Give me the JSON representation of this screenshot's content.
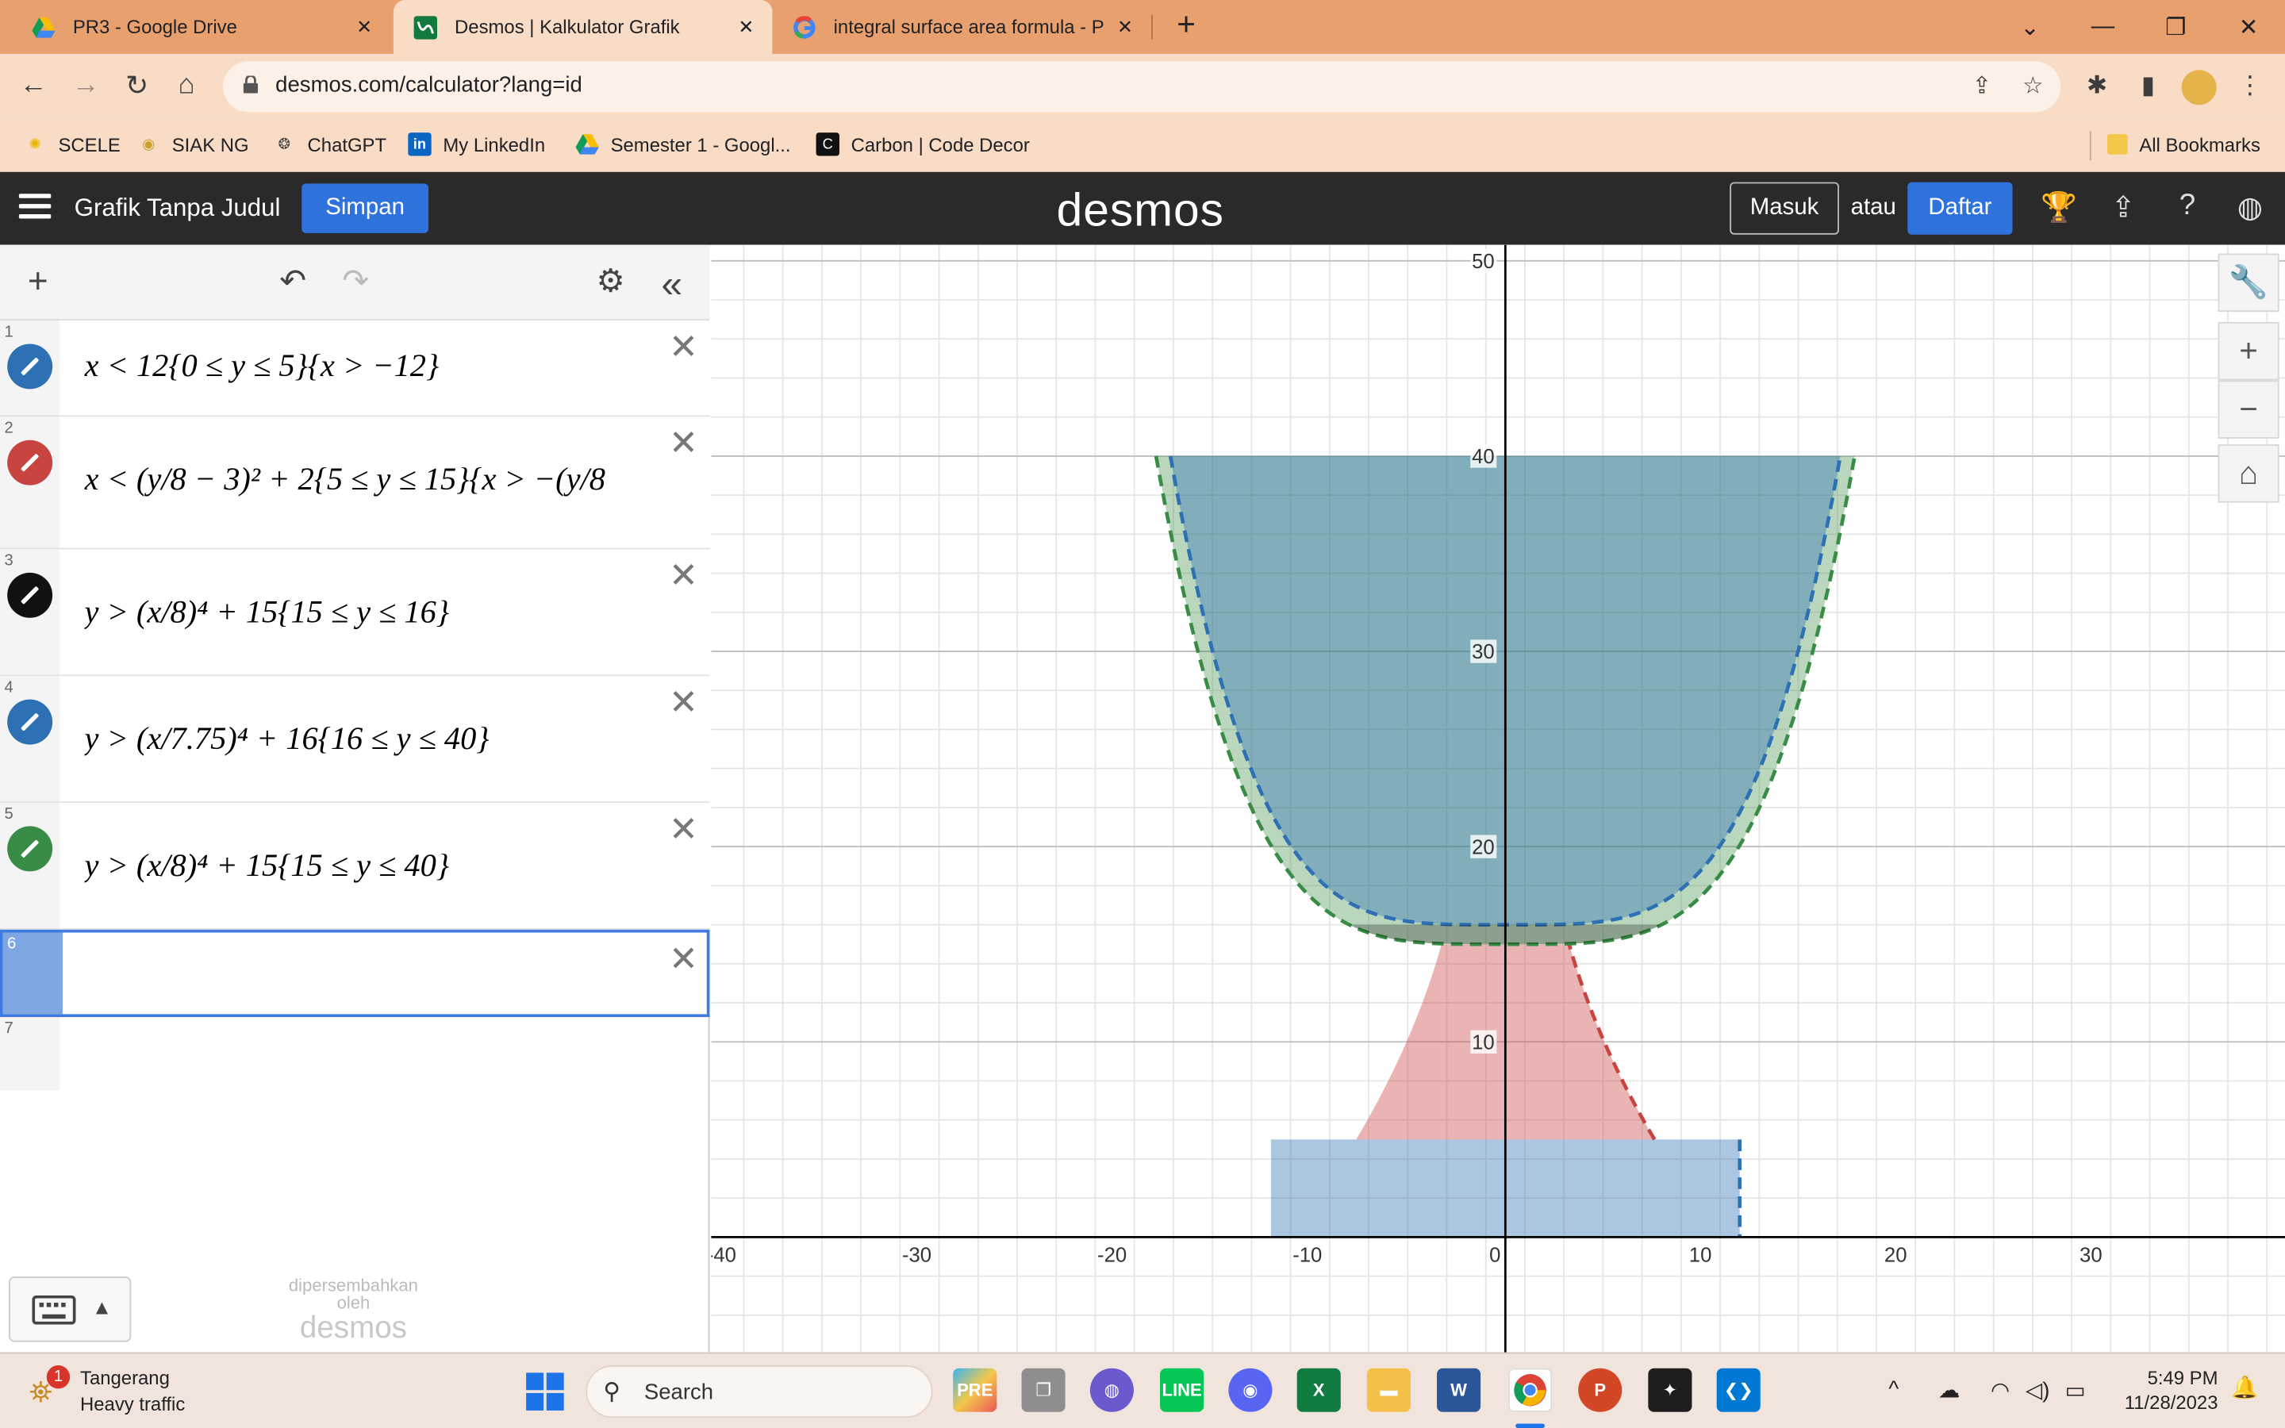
{
  "browser": {
    "tabs": [
      {
        "title": "PR3 - Google Drive",
        "icon": "google-drive-icon",
        "active": false
      },
      {
        "title": "Desmos | Kalkulator Grafik",
        "icon": "desmos-icon",
        "active": true
      },
      {
        "title": "integral surface area formula - P",
        "icon": "google-icon",
        "active": false
      }
    ],
    "url": "desmos.com/calculator?lang=id",
    "bookmarks": [
      {
        "label": "SCELE",
        "icon": "scele-icon"
      },
      {
        "label": "SIAK NG",
        "icon": "siak-icon"
      },
      {
        "label": "ChatGPT",
        "icon": "chatgpt-icon"
      },
      {
        "label": "My LinkedIn",
        "icon": "linkedin-icon"
      },
      {
        "label": "Semester 1 - Googl...",
        "icon": "google-drive-icon"
      },
      {
        "label": "Carbon | Code Decor",
        "icon": "carbon-icon"
      }
    ],
    "all_bookmarks": "All Bookmarks"
  },
  "desmos": {
    "graph_title": "Grafik Tanpa Judul",
    "save_label": "Simpan",
    "logo": "desmos",
    "login_label": "Masuk",
    "or_label": "atau",
    "signup_label": "Daftar",
    "powered_by": "dipersembahkan",
    "powered_by_2": "oleh",
    "powered_logo": "desmos"
  },
  "expressions": [
    {
      "num": "1",
      "color": "#2d70b3",
      "latex": "x < 12{0 ≤ y ≤ 5}{x > −12}"
    },
    {
      "num": "2",
      "color": "#c74440",
      "latex": "x < (y/8 − 3)² + 2{5 ≤ y ≤ 15}{x > −(y/8"
    },
    {
      "num": "3",
      "color": "#000000",
      "latex": "y > (x/8)⁴ + 15{15 ≤ y ≤ 16}"
    },
    {
      "num": "4",
      "color": "#2d70b3",
      "latex": "y > (x/7.75)⁴ + 16{16 ≤ y ≤ 40}"
    },
    {
      "num": "5",
      "color": "#388c46",
      "latex": "y > (x/8)⁴ + 15{15 ≤ y ≤ 40}"
    },
    {
      "num": "6",
      "color": "",
      "latex": ""
    },
    {
      "num": "7",
      "color": "",
      "latex": ""
    }
  ],
  "chart_data": {
    "type": "area",
    "xlim": [
      -40,
      40
    ],
    "ylim": [
      -6,
      50
    ],
    "x_ticks": [
      "-40",
      "-30",
      "-20",
      "-10",
      "0",
      "10",
      "20",
      "30"
    ],
    "y_ticks": [
      "10",
      "20",
      "30",
      "40",
      "50"
    ],
    "grid": true,
    "regions": [
      {
        "expr": "x < 12{0 ≤ y ≤ 5}{x > −12}",
        "color": "#2d70b3"
      },
      {
        "expr": "x < (y/8 − 3)² + 2{5 ≤ y ≤ 15}",
        "color": "#c74440"
      },
      {
        "expr": "y > (x/8)⁴ + 15{15 ≤ y ≤ 16}",
        "color": "#000000"
      },
      {
        "expr": "y > (x/7.75)⁴ + 16{16 ≤ y ≤ 40}",
        "color": "#2d70b3"
      },
      {
        "expr": "y > (x/8)⁴ + 15{15 ≤ y ≤ 40}",
        "color": "#388c46"
      }
    ]
  },
  "taskbar": {
    "weather_city": "Tangerang",
    "weather_desc": "Heavy traffic",
    "weather_badge": "1",
    "search_label": "Search",
    "time": "5:49 PM",
    "date": "11/28/2023"
  }
}
